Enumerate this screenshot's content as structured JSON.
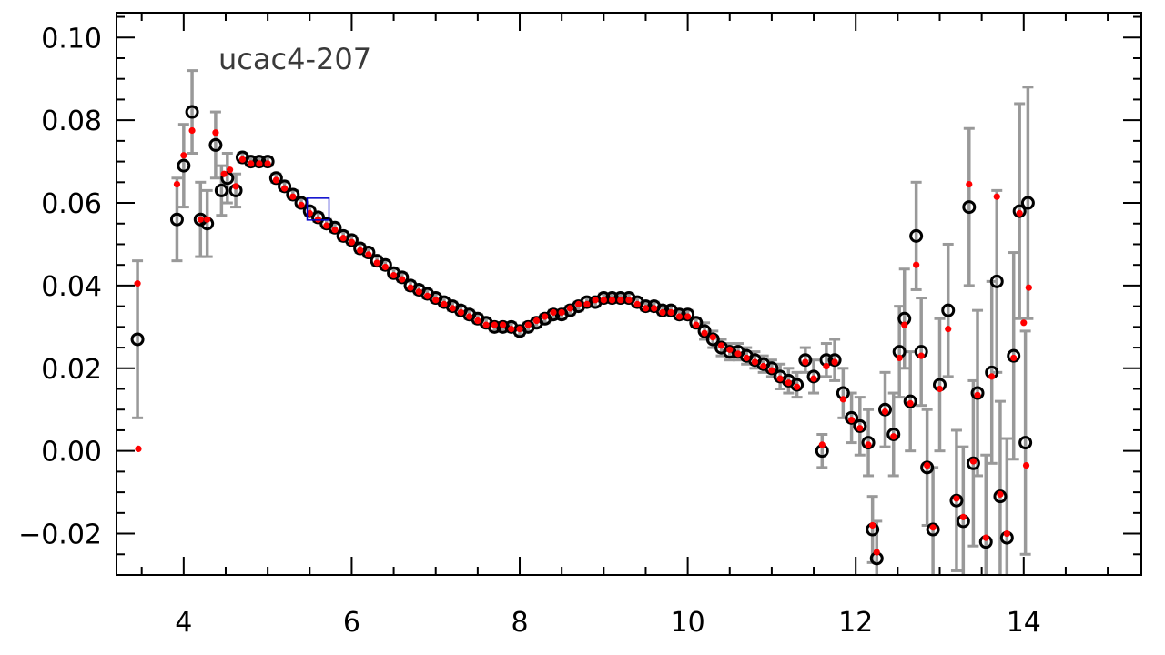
{
  "chart_data": {
    "type": "scatter",
    "title": "ucac4-207",
    "xlabel": "",
    "ylabel": "",
    "xlim": [
      3.2,
      15.4
    ],
    "ylim": [
      -0.03,
      0.106
    ],
    "x_ticks": [
      4,
      6,
      8,
      10,
      12,
      14
    ],
    "x_tick_labels": [
      "4",
      "6",
      "8",
      "10",
      "12",
      "14"
    ],
    "y_ticks": [
      -0.02,
      0.0,
      0.02,
      0.04,
      0.06,
      0.08,
      0.1
    ],
    "y_tick_labels": [
      "−0.02",
      "0.00",
      "0.02",
      "0.04",
      "0.06",
      "0.08",
      "0.10"
    ],
    "grid": false,
    "colors": {
      "open_markers": "#000000",
      "filled_markers": "#ff0000",
      "error_bars": "#999999",
      "highlight_box": "#0000cc"
    },
    "highlight_box": {
      "x": 5.6,
      "y": 0.0585
    },
    "series": [
      {
        "marker": "open-circle",
        "color": "#000000",
        "points": [
          [
            3.45,
            0.027,
            0.019
          ],
          [
            3.92,
            0.056,
            0.01
          ],
          [
            4.0,
            0.069,
            0.01
          ],
          [
            4.1,
            0.082,
            0.01
          ],
          [
            4.2,
            0.056,
            0.009
          ],
          [
            4.28,
            0.055,
            0.008
          ],
          [
            4.38,
            0.074,
            0.008
          ],
          [
            4.45,
            0.063,
            0.006
          ],
          [
            4.52,
            0.066,
            0.006
          ],
          [
            4.62,
            0.063,
            0.004
          ],
          [
            4.7,
            0.071,
            0.001
          ],
          [
            4.8,
            0.07,
            0.001
          ],
          [
            4.9,
            0.07,
            0.001
          ],
          [
            5.0,
            0.07,
            0.001
          ],
          [
            5.1,
            0.066,
            0.001
          ],
          [
            5.2,
            0.064,
            0.001
          ],
          [
            5.3,
            0.062,
            0.001
          ],
          [
            5.4,
            0.06,
            0.001
          ],
          [
            5.5,
            0.058,
            0.001
          ],
          [
            5.6,
            0.0565,
            0.001
          ],
          [
            5.7,
            0.055,
            0.001
          ],
          [
            5.8,
            0.054,
            0.001
          ],
          [
            5.9,
            0.052,
            0.001
          ],
          [
            6.0,
            0.051,
            0.001
          ],
          [
            6.1,
            0.049,
            0.001
          ],
          [
            6.2,
            0.048,
            0.001
          ],
          [
            6.3,
            0.046,
            0.001
          ],
          [
            6.4,
            0.045,
            0.001
          ],
          [
            6.5,
            0.043,
            0.001
          ],
          [
            6.6,
            0.042,
            0.001
          ],
          [
            6.7,
            0.04,
            0.001
          ],
          [
            6.8,
            0.039,
            0.001
          ],
          [
            6.9,
            0.038,
            0.001
          ],
          [
            7.0,
            0.037,
            0.001
          ],
          [
            7.1,
            0.036,
            0.001
          ],
          [
            7.2,
            0.035,
            0.001
          ],
          [
            7.3,
            0.034,
            0.001
          ],
          [
            7.4,
            0.033,
            0.001
          ],
          [
            7.5,
            0.032,
            0.001
          ],
          [
            7.6,
            0.031,
            0.001
          ],
          [
            7.7,
            0.03,
            0.001
          ],
          [
            7.8,
            0.03,
            0.001
          ],
          [
            7.9,
            0.03,
            0.001
          ],
          [
            8.0,
            0.029,
            0.001
          ],
          [
            8.1,
            0.03,
            0.001
          ],
          [
            8.2,
            0.031,
            0.001
          ],
          [
            8.3,
            0.032,
            0.001
          ],
          [
            8.4,
            0.033,
            0.001
          ],
          [
            8.5,
            0.033,
            0.001
          ],
          [
            8.6,
            0.034,
            0.001
          ],
          [
            8.7,
            0.035,
            0.001
          ],
          [
            8.8,
            0.036,
            0.001
          ],
          [
            8.9,
            0.036,
            0.001
          ],
          [
            9.0,
            0.037,
            0.001
          ],
          [
            9.1,
            0.037,
            0.001
          ],
          [
            9.2,
            0.037,
            0.001
          ],
          [
            9.3,
            0.037,
            0.001
          ],
          [
            9.4,
            0.036,
            0.001
          ],
          [
            9.5,
            0.035,
            0.001
          ],
          [
            9.6,
            0.035,
            0.001
          ],
          [
            9.7,
            0.034,
            0.001
          ],
          [
            9.8,
            0.034,
            0.001
          ],
          [
            9.9,
            0.033,
            0.001
          ],
          [
            10.0,
            0.033,
            0.001
          ],
          [
            10.1,
            0.031,
            0.001
          ],
          [
            10.2,
            0.029,
            0.002
          ],
          [
            10.3,
            0.027,
            0.002
          ],
          [
            10.4,
            0.025,
            0.002
          ],
          [
            10.5,
            0.024,
            0.002
          ],
          [
            10.6,
            0.024,
            0.002
          ],
          [
            10.7,
            0.023,
            0.002
          ],
          [
            10.8,
            0.022,
            0.002
          ],
          [
            10.9,
            0.021,
            0.002
          ],
          [
            11.0,
            0.02,
            0.002
          ],
          [
            11.1,
            0.018,
            0.003
          ],
          [
            11.2,
            0.017,
            0.003
          ],
          [
            11.3,
            0.016,
            0.003
          ],
          [
            11.4,
            0.022,
            0.003
          ],
          [
            11.5,
            0.018,
            0.004
          ],
          [
            11.6,
            0.0,
            0.004
          ],
          [
            11.65,
            0.022,
            0.004
          ],
          [
            11.75,
            0.022,
            0.005
          ],
          [
            11.85,
            0.014,
            0.006
          ],
          [
            11.95,
            0.008,
            0.006
          ],
          [
            12.05,
            0.006,
            0.007
          ],
          [
            12.15,
            0.002,
            0.008
          ],
          [
            12.2,
            -0.019,
            0.008
          ],
          [
            12.25,
            -0.026,
            0.009
          ],
          [
            12.35,
            0.01,
            0.009
          ],
          [
            12.45,
            0.004,
            0.01
          ],
          [
            12.52,
            0.024,
            0.011
          ],
          [
            12.58,
            0.032,
            0.012
          ],
          [
            12.65,
            0.012,
            0.012
          ],
          [
            12.72,
            0.052,
            0.013
          ],
          [
            12.78,
            0.024,
            0.013
          ],
          [
            12.85,
            -0.004,
            0.014
          ],
          [
            12.92,
            -0.019,
            0.015
          ],
          [
            13.0,
            0.016,
            0.016
          ],
          [
            13.1,
            0.034,
            0.016
          ],
          [
            13.2,
            -0.012,
            0.017
          ],
          [
            13.28,
            -0.017,
            0.018
          ],
          [
            13.35,
            0.059,
            0.019
          ],
          [
            13.4,
            -0.003,
            0.02
          ],
          [
            13.45,
            0.014,
            0.02
          ],
          [
            13.55,
            -0.022,
            0.021
          ],
          [
            13.62,
            0.019,
            0.022
          ],
          [
            13.68,
            0.041,
            0.022
          ],
          [
            13.72,
            -0.011,
            0.023
          ],
          [
            13.8,
            -0.021,
            0.024
          ],
          [
            13.88,
            0.023,
            0.025
          ],
          [
            13.95,
            0.058,
            0.026
          ],
          [
            14.02,
            0.002,
            0.027
          ],
          [
            14.05,
            0.06,
            0.028
          ]
        ]
      },
      {
        "marker": "filled-dot",
        "color": "#ff0000",
        "points": [
          [
            3.45,
            0.0405
          ],
          [
            3.46,
            0.0005
          ],
          [
            3.92,
            0.0645
          ],
          [
            4.0,
            0.0715
          ],
          [
            4.1,
            0.0775
          ],
          [
            4.2,
            0.056
          ],
          [
            4.28,
            0.056
          ],
          [
            4.38,
            0.077
          ],
          [
            4.48,
            0.067
          ],
          [
            4.55,
            0.068
          ],
          [
            4.62,
            0.064
          ],
          [
            4.7,
            0.0705
          ],
          [
            4.8,
            0.0695
          ],
          [
            4.9,
            0.0695
          ],
          [
            5.0,
            0.0695
          ],
          [
            5.1,
            0.0655
          ],
          [
            5.2,
            0.0635
          ],
          [
            5.3,
            0.0615
          ],
          [
            5.4,
            0.0595
          ],
          [
            5.5,
            0.0575
          ],
          [
            5.6,
            0.056
          ],
          [
            5.7,
            0.0545
          ],
          [
            5.8,
            0.0535
          ],
          [
            5.9,
            0.0515
          ],
          [
            6.0,
            0.0505
          ],
          [
            6.1,
            0.0485
          ],
          [
            6.2,
            0.0475
          ],
          [
            6.3,
            0.0455
          ],
          [
            6.4,
            0.0445
          ],
          [
            6.5,
            0.0425
          ],
          [
            6.6,
            0.0415
          ],
          [
            6.7,
            0.0395
          ],
          [
            6.8,
            0.0385
          ],
          [
            6.9,
            0.0375
          ],
          [
            7.0,
            0.0365
          ],
          [
            7.1,
            0.0355
          ],
          [
            7.2,
            0.0345
          ],
          [
            7.3,
            0.0335
          ],
          [
            7.4,
            0.0325
          ],
          [
            7.5,
            0.0315
          ],
          [
            7.6,
            0.0305
          ],
          [
            7.7,
            0.0305
          ],
          [
            7.8,
            0.0305
          ],
          [
            7.9,
            0.0295
          ],
          [
            8.0,
            0.0295
          ],
          [
            8.1,
            0.0305
          ],
          [
            8.2,
            0.0315
          ],
          [
            8.3,
            0.0325
          ],
          [
            8.4,
            0.0335
          ],
          [
            8.5,
            0.0335
          ],
          [
            8.6,
            0.0345
          ],
          [
            8.7,
            0.0355
          ],
          [
            8.8,
            0.0355
          ],
          [
            8.9,
            0.0365
          ],
          [
            9.0,
            0.0365
          ],
          [
            9.1,
            0.0365
          ],
          [
            9.2,
            0.0365
          ],
          [
            9.3,
            0.0365
          ],
          [
            9.4,
            0.0355
          ],
          [
            9.5,
            0.0345
          ],
          [
            9.6,
            0.0345
          ],
          [
            9.7,
            0.0335
          ],
          [
            9.8,
            0.0335
          ],
          [
            9.9,
            0.0325
          ],
          [
            10.0,
            0.0325
          ],
          [
            10.1,
            0.0305
          ],
          [
            10.2,
            0.0285
          ],
          [
            10.3,
            0.0275
          ],
          [
            10.4,
            0.0255
          ],
          [
            10.5,
            0.0245
          ],
          [
            10.6,
            0.0235
          ],
          [
            10.7,
            0.0225
          ],
          [
            10.8,
            0.0215
          ],
          [
            10.9,
            0.0205
          ],
          [
            11.0,
            0.0195
          ],
          [
            11.1,
            0.0175
          ],
          [
            11.2,
            0.0165
          ],
          [
            11.3,
            0.0155
          ],
          [
            11.4,
            0.0215
          ],
          [
            11.5,
            0.0175
          ],
          [
            11.6,
            0.0015
          ],
          [
            11.65,
            0.0205
          ],
          [
            11.75,
            0.0215
          ],
          [
            11.85,
            0.0125
          ],
          [
            11.95,
            0.0075
          ],
          [
            12.05,
            0.0055
          ],
          [
            12.15,
            0.0015
          ],
          [
            12.2,
            -0.018
          ],
          [
            12.25,
            -0.0245
          ],
          [
            12.35,
            0.0095
          ],
          [
            12.45,
            0.0035
          ],
          [
            12.52,
            0.0225
          ],
          [
            12.58,
            0.0305
          ],
          [
            12.65,
            0.0115
          ],
          [
            12.72,
            0.045
          ],
          [
            12.78,
            0.023
          ],
          [
            12.85,
            -0.0035
          ],
          [
            12.92,
            -0.0185
          ],
          [
            13.0,
            0.015
          ],
          [
            13.1,
            0.0295
          ],
          [
            13.2,
            -0.0115
          ],
          [
            13.28,
            -0.016
          ],
          [
            13.35,
            0.0645
          ],
          [
            13.4,
            -0.0025
          ],
          [
            13.45,
            0.0135
          ],
          [
            13.55,
            -0.021
          ],
          [
            13.62,
            0.018
          ],
          [
            13.68,
            0.0615
          ],
          [
            13.72,
            -0.0105
          ],
          [
            13.8,
            -0.02
          ],
          [
            13.88,
            0.0225
          ],
          [
            13.95,
            0.0575
          ],
          [
            14.0,
            0.031
          ],
          [
            14.03,
            -0.0035
          ],
          [
            14.06,
            0.0395
          ]
        ]
      }
    ]
  }
}
